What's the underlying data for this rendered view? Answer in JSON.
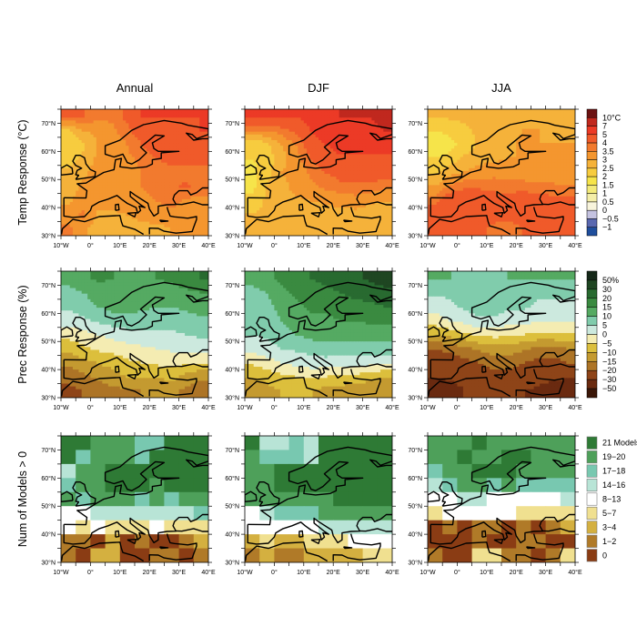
{
  "chart_data": {
    "type": "heatmap",
    "column_titles": [
      "Annual",
      "DJF",
      "JJA"
    ],
    "row_labels": [
      "Temp Response (°C)",
      "Prec Response (%)",
      "Num of Models > 0"
    ],
    "x_tick_labels": [
      "10°W",
      "0°",
      "10°E",
      "20°E",
      "30°E",
      "40°E"
    ],
    "x_ticks_lon": [
      -10,
      0,
      10,
      20,
      30,
      40
    ],
    "y_tick_labels": [
      "30°N",
      "40°N",
      "50°N",
      "60°N",
      "70°N"
    ],
    "y_ticks_lat": [
      30,
      40,
      50,
      60,
      70
    ],
    "lon_range": [
      -10,
      40
    ],
    "lat_range": [
      30,
      75
    ],
    "grid_lon_centers": [
      -7.5,
      -2.5,
      2.5,
      7.5,
      12.5,
      17.5,
      22.5,
      27.5,
      32.5,
      37.5
    ],
    "grid_lat_centers": [
      72.5,
      67.5,
      62.5,
      57.5,
      52.5,
      47.5,
      42.5,
      37.5,
      32.5
    ],
    "legends": {
      "temp": {
        "labels": [
          "10°C",
          "7",
          "5",
          "4",
          "3.5",
          "3",
          "2.5",
          "2",
          "1.5",
          "1",
          "0.5",
          "0",
          "−0.5",
          "−1"
        ],
        "boundaries": [
          10,
          7,
          5,
          4,
          3.5,
          3,
          2.5,
          2,
          1.5,
          1,
          0.5,
          0,
          -0.5,
          -1
        ],
        "colors": [
          "#6b1212",
          "#c0281e",
          "#ec3a26",
          "#f05a2a",
          "#f27a2e",
          "#f4962f",
          "#f5b23a",
          "#f7cc3f",
          "#f6e44a",
          "#f3ea7a",
          "#f4eea8",
          "#f8f4dc",
          "#c4c2e0",
          "#5a68b0",
          "#1f4e9c"
        ]
      },
      "prec": {
        "labels": [
          "50%",
          "30",
          "20",
          "15",
          "10",
          "5",
          "0",
          "−5",
          "−10",
          "−15",
          "−20",
          "−30",
          "−50"
        ],
        "boundaries": [
          50,
          30,
          20,
          15,
          10,
          5,
          0,
          -5,
          -10,
          -15,
          -20,
          -30,
          -50
        ],
        "colors": [
          "#152818",
          "#1f4622",
          "#286a30",
          "#3a8a40",
          "#55aa62",
          "#80ccac",
          "#cce9de",
          "#f4ecb2",
          "#dcbf3c",
          "#c49a30",
          "#ad7426",
          "#8e4418",
          "#6a2a10",
          "#3a1608"
        ]
      },
      "models": {
        "labels": [
          "21 Models",
          "19−20",
          "17−18",
          "14−16",
          "8−13",
          "5−7",
          "3−4",
          "1−2",
          "0"
        ],
        "lower_bounds": [
          21,
          19,
          17,
          14,
          8,
          5,
          3,
          1,
          0
        ],
        "colors": [
          "#2e7a35",
          "#4ea05a",
          "#78c8b0",
          "#b8e4d6",
          "#ffffff",
          "#f0e090",
          "#d4b040",
          "#b07a28",
          "#8a3c14"
        ]
      }
    },
    "panels": [
      {
        "row": "temp",
        "column": "Annual",
        "values": [
          [
            4,
            4,
            3.6,
            3.6,
            4.2,
            5,
            5,
            5,
            5,
            5
          ],
          [
            2.4,
            3,
            3.2,
            3.4,
            3.8,
            4.5,
            4.6,
            4.6,
            4.8,
            5
          ],
          [
            2,
            2.4,
            3,
            3.2,
            3.5,
            4,
            4.5,
            4.5,
            4.5,
            4.5
          ],
          [
            2.3,
            2.6,
            3.1,
            3.2,
            3.4,
            3.6,
            4,
            4.2,
            4.2,
            4.2
          ],
          [
            2.6,
            2.9,
            3.2,
            3.3,
            3.4,
            3.5,
            3.7,
            3.8,
            3.8,
            3.8
          ],
          [
            2.8,
            3.1,
            3.3,
            3.3,
            3.4,
            3.5,
            3.7,
            3.9,
            4.1,
            3.8
          ],
          [
            2.9,
            3.2,
            3.2,
            3.2,
            3.3,
            3.4,
            3.5,
            3.8,
            3.4,
            3.3
          ],
          [
            3.2,
            3.6,
            2.9,
            2.9,
            3,
            3.1,
            3.2,
            3.2,
            3.2,
            3.3
          ],
          [
            3.6,
            3.1,
            2.8,
            2.8,
            2.8,
            2.9,
            2.9,
            3,
            3.1,
            3.3
          ]
        ]
      },
      {
        "row": "temp",
        "column": "DJF",
        "values": [
          [
            5,
            5,
            5,
            5,
            5.5,
            6,
            7,
            7,
            7,
            8
          ],
          [
            3.5,
            3.5,
            3.8,
            4.2,
            5,
            5.5,
            6,
            6,
            6.5,
            7
          ],
          [
            2,
            2.4,
            3,
            3.5,
            4.5,
            5,
            5.5,
            5.5,
            5.5,
            5.5
          ],
          [
            2,
            2.2,
            2.8,
            3.3,
            4,
            4.5,
            4.8,
            4.8,
            4.8,
            4.8
          ],
          [
            1.8,
            2.3,
            3,
            3.2,
            3.6,
            4,
            4.3,
            4.5,
            4.5,
            4.3
          ],
          [
            1.8,
            2.5,
            2.8,
            3.2,
            3.4,
            3.6,
            3.8,
            3.8,
            3.8,
            3.6
          ],
          [
            2.2,
            2.6,
            2.8,
            2.9,
            3,
            3.1,
            3.2,
            3.3,
            3.1,
            3
          ],
          [
            2.5,
            2.6,
            2.5,
            2.5,
            2.6,
            2.7,
            2.8,
            2.8,
            2.7,
            2.8
          ],
          [
            2.6,
            2.6,
            2.5,
            2.5,
            2.5,
            2.6,
            2.7,
            2.8,
            2.8,
            2.9
          ]
        ]
      },
      {
        "row": "temp",
        "column": "JJA",
        "values": [
          [
            2.5,
            2.6,
            2.6,
            2.7,
            2.8,
            2.8,
            2.9,
            2.8,
            2.8,
            2.9
          ],
          [
            2,
            2.2,
            2.4,
            2.6,
            2.8,
            2.9,
            3,
            3,
            2.9,
            2.9
          ],
          [
            1.5,
            1.8,
            2.2,
            2.6,
            2.8,
            2.9,
            3.1,
            3,
            3,
            3
          ],
          [
            2,
            2.2,
            2.6,
            2.8,
            2.9,
            3,
            3,
            3,
            3,
            3.1
          ],
          [
            2.4,
            2.8,
            3,
            3.2,
            3.3,
            3.2,
            3.2,
            3.1,
            3.1,
            3.2
          ],
          [
            3,
            3.6,
            3.9,
            3.9,
            3.8,
            3.7,
            3.7,
            3.6,
            3.6,
            3.5
          ],
          [
            3.8,
            4.5,
            4.6,
            4.4,
            4.3,
            4.4,
            4.5,
            4.4,
            4.2,
            4.2
          ],
          [
            4.5,
            4.8,
            4.6,
            4.4,
            4.3,
            4.4,
            4.6,
            4.5,
            4.4,
            4.4
          ],
          [
            4.6,
            4.5,
            4.2,
            4.2,
            3.8,
            3.6,
            4,
            4.2,
            4.3,
            4.5
          ]
        ]
      },
      {
        "row": "prec",
        "column": "Annual",
        "values": [
          [
            12,
            14,
            16,
            15,
            14,
            14,
            15,
            16,
            18,
            20
          ],
          [
            8,
            10,
            12,
            14,
            13,
            12,
            12,
            13,
            14,
            15
          ],
          [
            6,
            8,
            10,
            12,
            12,
            11,
            10,
            10,
            11,
            12
          ],
          [
            2,
            4,
            6,
            7,
            8,
            8,
            7,
            7,
            8,
            9
          ],
          [
            -3,
            -2,
            0,
            2,
            3,
            4,
            4,
            4,
            5,
            6
          ],
          [
            -8,
            -6,
            -4,
            -3,
            -2,
            -1,
            0,
            1,
            2,
            2
          ],
          [
            -14,
            -12,
            -10,
            -8,
            -6,
            -5,
            -4,
            -3,
            -4,
            -5
          ],
          [
            -18,
            -16,
            -14,
            -12,
            -10,
            -10,
            -10,
            -8,
            -12,
            -14
          ],
          [
            -22,
            -20,
            -18,
            -16,
            -16,
            -15,
            -14,
            -14,
            -16,
            -18
          ]
        ]
      },
      {
        "row": "prec",
        "column": "DJF",
        "values": [
          [
            12,
            14,
            16,
            18,
            20,
            22,
            24,
            28,
            32,
            36
          ],
          [
            8,
            10,
            14,
            16,
            16,
            18,
            20,
            22,
            24,
            26
          ],
          [
            6,
            8,
            12,
            14,
            16,
            16,
            17,
            18,
            18,
            20
          ],
          [
            6,
            7,
            10,
            12,
            14,
            14,
            15,
            15,
            16,
            16
          ],
          [
            5,
            6,
            8,
            10,
            12,
            12,
            12,
            12,
            12,
            12
          ],
          [
            2,
            3,
            5,
            6,
            7,
            8,
            8,
            8,
            8,
            8
          ],
          [
            -4,
            -2,
            0,
            2,
            3,
            3,
            2,
            2,
            2,
            1
          ],
          [
            -10,
            -8,
            -6,
            -5,
            -4,
            -5,
            -6,
            -6,
            -8,
            -10
          ],
          [
            -14,
            -12,
            -10,
            -10,
            -10,
            -12,
            -12,
            -14,
            -14,
            -14
          ]
        ]
      },
      {
        "row": "prec",
        "column": "JJA",
        "values": [
          [
            10,
            10,
            8,
            8,
            8,
            10,
            10,
            10,
            10,
            10
          ],
          [
            6,
            6,
            6,
            6,
            6,
            8,
            8,
            6,
            6,
            6
          ],
          [
            2,
            4,
            6,
            8,
            8,
            6,
            6,
            4,
            4,
            4
          ],
          [
            -2,
            0,
            2,
            4,
            4,
            2,
            2,
            1,
            0,
            0
          ],
          [
            -10,
            -8,
            -6,
            -4,
            -3,
            -4,
            -5,
            -6,
            -6,
            -6
          ],
          [
            -20,
            -18,
            -16,
            -14,
            -12,
            -12,
            -14,
            -16,
            -16,
            -15
          ],
          [
            -25,
            -24,
            -22,
            -20,
            -18,
            -18,
            -20,
            -22,
            -22,
            -20
          ],
          [
            -30,
            -28,
            -26,
            -24,
            -22,
            -22,
            -24,
            -26,
            -28,
            -28
          ],
          [
            -40,
            -35,
            -30,
            -30,
            -28,
            -28,
            -30,
            -32,
            -35,
            -40
          ]
        ]
      },
      {
        "row": "models",
        "column": "Annual",
        "values": [
          [
            21,
            21,
            19,
            19,
            19,
            17,
            17,
            21,
            21,
            21
          ],
          [
            21,
            17,
            19,
            19,
            19,
            17,
            21,
            21,
            21,
            21
          ],
          [
            15,
            19,
            19,
            21,
            21,
            21,
            21,
            21,
            21,
            21
          ],
          [
            17,
            19,
            19,
            21,
            21,
            21,
            19,
            21,
            21,
            21
          ],
          [
            19,
            17,
            19,
            19,
            19,
            17,
            19,
            17,
            19,
            19
          ],
          [
            10,
            10,
            15,
            15,
            15,
            15,
            15,
            15,
            15,
            17
          ],
          [
            10,
            6,
            10,
            6,
            6,
            6,
            10,
            6,
            6,
            6
          ],
          [
            2,
            1,
            0,
            4,
            0,
            2,
            0,
            0,
            2,
            4
          ],
          [
            2,
            0,
            4,
            4,
            0,
            0,
            2,
            2,
            0,
            2
          ]
        ]
      },
      {
        "row": "models",
        "column": "DJF",
        "values": [
          [
            21,
            15,
            15,
            17,
            15,
            21,
            21,
            21,
            21,
            21
          ],
          [
            19,
            17,
            17,
            17,
            15,
            21,
            21,
            21,
            21,
            21
          ],
          [
            19,
            19,
            21,
            21,
            21,
            21,
            21,
            21,
            21,
            21
          ],
          [
            19,
            19,
            21,
            21,
            21,
            21,
            21,
            21,
            21,
            21
          ],
          [
            19,
            19,
            19,
            19,
            19,
            19,
            21,
            21,
            21,
            21
          ],
          [
            10,
            15,
            17,
            17,
            17,
            19,
            19,
            19,
            19,
            19
          ],
          [
            10,
            10,
            10,
            10,
            10,
            15,
            15,
            15,
            15,
            15
          ],
          [
            4,
            6,
            4,
            4,
            6,
            6,
            6,
            10,
            10,
            10
          ],
          [
            2,
            4,
            2,
            2,
            4,
            4,
            4,
            4,
            6,
            6
          ]
        ]
      },
      {
        "row": "models",
        "column": "JJA",
        "values": [
          [
            19,
            19,
            19,
            21,
            19,
            19,
            19,
            19,
            19,
            19
          ],
          [
            19,
            19,
            21,
            19,
            19,
            21,
            21,
            19,
            19,
            19
          ],
          [
            17,
            19,
            19,
            21,
            21,
            21,
            19,
            19,
            19,
            19
          ],
          [
            15,
            17,
            19,
            19,
            17,
            19,
            17,
            17,
            17,
            17
          ],
          [
            10,
            10,
            15,
            15,
            10,
            10,
            10,
            10,
            10,
            15
          ],
          [
            6,
            10,
            10,
            10,
            10,
            10,
            6,
            6,
            6,
            6
          ],
          [
            0,
            2,
            0,
            2,
            2,
            0,
            2,
            0,
            2,
            4
          ],
          [
            0,
            0,
            0,
            2,
            0,
            0,
            2,
            2,
            0,
            0
          ],
          [
            2,
            0,
            0,
            6,
            6,
            2,
            2,
            0,
            2,
            6
          ]
        ]
      }
    ]
  }
}
